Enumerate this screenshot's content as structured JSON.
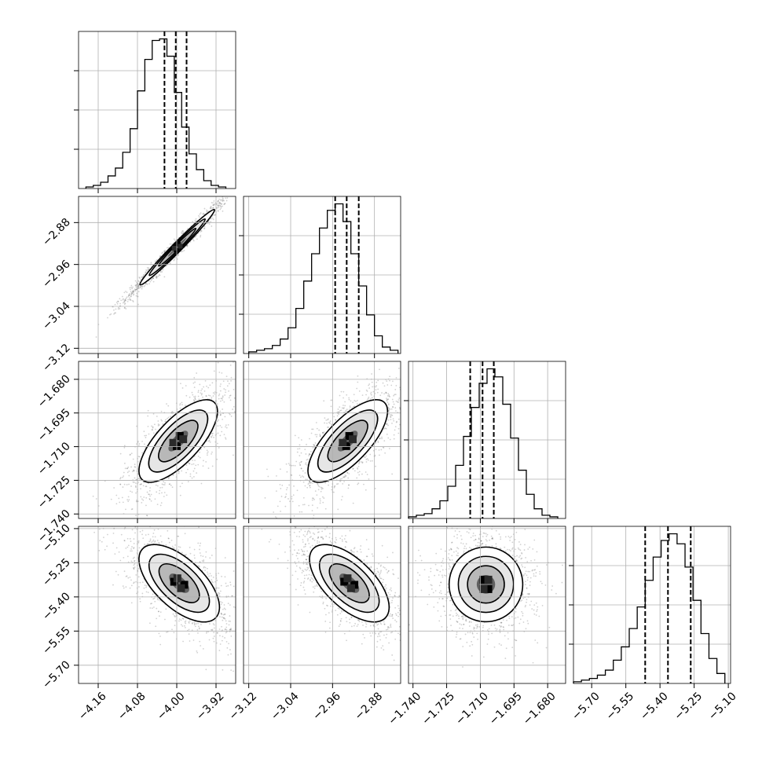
{
  "chart_data": {
    "type": "corner",
    "title": "",
    "n_params": 4,
    "axes": [
      {
        "name": "",
        "range": [
          -4.2,
          -3.88
        ],
        "ticks": [
          "−4.16",
          "−4.08",
          "−4.00",
          "−3.92"
        ],
        "tick_values": [
          -4.16,
          -4.08,
          -4.0,
          -3.92
        ]
      },
      {
        "name": "",
        "range": [
          -3.13,
          -2.83
        ],
        "ticks": [
          "−3.12",
          "−3.04",
          "−2.96",
          "−2.88"
        ],
        "tick_values": [
          -3.12,
          -3.04,
          -2.96,
          -2.88
        ]
      },
      {
        "name": "",
        "range": [
          -1.742,
          -1.672
        ],
        "ticks": [
          "−1.740",
          "−1.725",
          "−1.710",
          "−1.695",
          "−1.680"
        ],
        "tick_values": [
          -1.74,
          -1.725,
          -1.71,
          -1.695,
          -1.68
        ]
      },
      {
        "name": "",
        "range": [
          -5.78,
          -5.09
        ],
        "ticks": [
          "−5.70",
          "−5.55",
          "−5.40",
          "−5.25",
          "−5.10"
        ],
        "tick_values": [
          -5.7,
          -5.55,
          -5.4,
          -5.25,
          -5.1
        ]
      }
    ],
    "diagonal": [
      {
        "param": 0,
        "quantiles": [
          -4.025,
          -4.002,
          -3.98
        ],
        "bin_edges": [
          -4.185,
          -4.17,
          -4.155,
          -4.14,
          -4.125,
          -4.11,
          -4.095,
          -4.08,
          -4.065,
          -4.05,
          -4.035,
          -4.02,
          -4.005,
          -3.99,
          -3.975,
          -3.96,
          -3.945,
          -3.93,
          -3.915,
          -3.9
        ],
        "counts": [
          1,
          2,
          4,
          8,
          13,
          23,
          38,
          62,
          82,
          94,
          95,
          84,
          61,
          39,
          22,
          12,
          5,
          2,
          1
        ]
      },
      {
        "param": 1,
        "quantiles": [
          -2.955,
          -2.933,
          -2.91
        ],
        "bin_edges": [
          -3.12,
          -3.105,
          -3.09,
          -3.075,
          -3.06,
          -3.045,
          -3.03,
          -3.015,
          -3.0,
          -2.985,
          -2.97,
          -2.955,
          -2.94,
          -2.925,
          -2.91,
          -2.895,
          -2.88,
          -2.865,
          -2.85,
          -2.835
        ],
        "counts": [
          1,
          2,
          3,
          5,
          9,
          16,
          28,
          45,
          62,
          78,
          89,
          93,
          82,
          62,
          42,
          24,
          11,
          4,
          2
        ]
      },
      {
        "param": 2,
        "quantiles": [
          -1.7145,
          -1.709,
          -1.704
        ],
        "bin_edges": [
          -1.742,
          -1.7385,
          -1.735,
          -1.7315,
          -1.728,
          -1.7245,
          -1.721,
          -1.7175,
          -1.714,
          -1.7105,
          -1.707,
          -1.7035,
          -1.7,
          -1.6965,
          -1.693,
          -1.6895,
          -1.686,
          -1.6825,
          -1.679,
          -1.6755
        ],
        "counts": [
          1,
          2,
          3,
          6,
          11,
          20,
          33,
          51,
          69,
          84,
          93,
          88,
          71,
          50,
          30,
          15,
          6,
          2,
          1
        ]
      },
      {
        "param": 3,
        "quantiles": [
          -5.465,
          -5.365,
          -5.265
        ],
        "bin_edges": [
          -5.78,
          -5.745,
          -5.71,
          -5.675,
          -5.64,
          -5.605,
          -5.57,
          -5.535,
          -5.5,
          -5.465,
          -5.43,
          -5.395,
          -5.36,
          -5.325,
          -5.29,
          -5.255,
          -5.22,
          -5.185,
          -5.15,
          -5.115
        ],
        "counts": [
          1,
          2,
          3,
          5,
          8,
          14,
          22,
          33,
          46,
          62,
          76,
          86,
          90,
          84,
          70,
          50,
          30,
          15,
          6
        ]
      }
    ],
    "pairs": [
      {
        "x": 0,
        "y": 1,
        "mean": [
          -3.999,
          -2.927
        ],
        "sd": [
          0.038,
          0.036
        ],
        "corr": 0.985
      },
      {
        "x": 0,
        "y": 2,
        "mean": [
          -3.997,
          -1.7075
        ],
        "sd": [
          0.04,
          0.0092
        ],
        "corr": 0.72
      },
      {
        "x": 1,
        "y": 2,
        "mean": [
          -2.931,
          -1.7075
        ],
        "sd": [
          0.038,
          0.0092
        ],
        "corr": 0.72
      },
      {
        "x": 0,
        "y": 3,
        "mean": [
          -3.995,
          -5.34
        ],
        "sd": [
          0.041,
          0.085
        ],
        "corr": -0.62
      },
      {
        "x": 1,
        "y": 3,
        "mean": [
          -2.928,
          -5.34
        ],
        "sd": [
          0.038,
          0.085
        ],
        "corr": -0.62
      },
      {
        "x": 2,
        "y": 3,
        "mean": [
          -1.7075,
          -5.345
        ],
        "sd": [
          0.0082,
          0.082
        ],
        "corr": 0.0
      }
    ]
  }
}
